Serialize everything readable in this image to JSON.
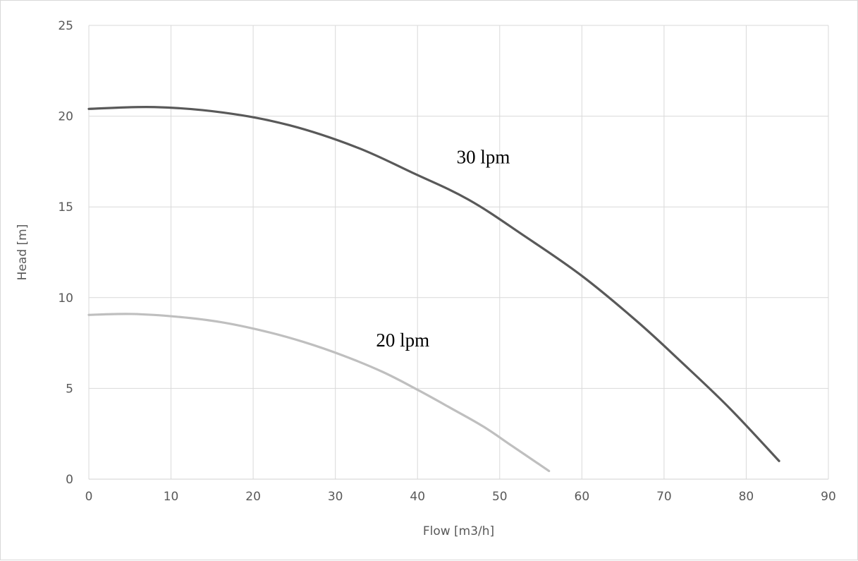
{
  "chart_data": {
    "type": "line",
    "title": "",
    "xlabel": "Flow [m3/h]",
    "ylabel": "Head [m]",
    "xlim": [
      0,
      90
    ],
    "ylim": [
      0,
      25
    ],
    "x_ticks": [
      "0",
      "10",
      "20",
      "30",
      "40",
      "50",
      "60",
      "70",
      "80",
      "90"
    ],
    "y_ticks": [
      "0",
      "5",
      "10",
      "15",
      "20",
      "25"
    ],
    "grid": "both",
    "legend": "none",
    "series": [
      {
        "name": "30 lpm",
        "color": "#595959",
        "x": [
          0,
          8,
          16.3,
          24.4,
          32.5,
          39.3,
          46.2,
          53,
          60,
          66.7,
          72,
          78,
          84
        ],
        "y": [
          20.4,
          20.5,
          20.2,
          19.5,
          18.3,
          16.9,
          15.4,
          13.4,
          11.2,
          8.7,
          6.5,
          3.9,
          1.0
        ]
      },
      {
        "name": "20 lpm",
        "color": "#bfbfbf",
        "x": [
          0,
          5.2,
          10.7,
          16.1,
          21.4,
          26.2,
          31,
          35.8,
          40.1,
          44.1,
          48,
          51.6,
          56
        ],
        "y": [
          9.05,
          9.1,
          8.95,
          8.65,
          8.15,
          7.55,
          6.8,
          5.9,
          4.9,
          3.9,
          2.9,
          1.8,
          0.45
        ]
      }
    ],
    "annotations": [
      {
        "text": "30 lpm",
        "x": 48,
        "y": 17.4
      },
      {
        "text": "20 lpm",
        "x": 38.2,
        "y": 7.3
      }
    ]
  }
}
